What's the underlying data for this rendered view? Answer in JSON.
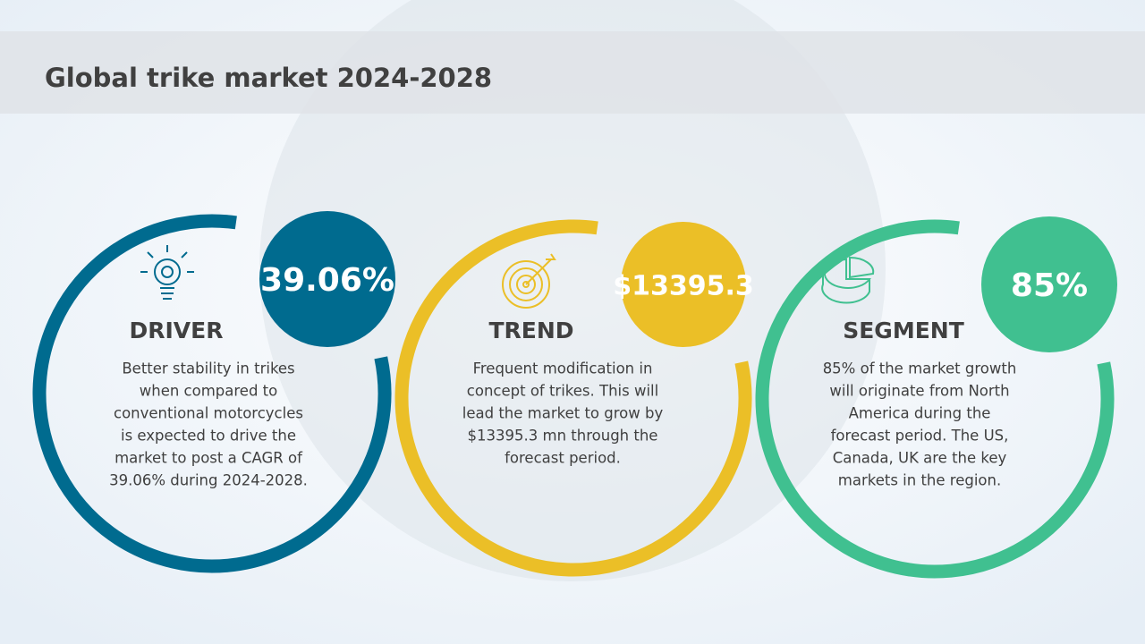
{
  "header": {
    "title": "Global trike market 2024-2028"
  },
  "cards": [
    {
      "badge": "39.06%",
      "heading": "DRIVER",
      "color": "#006b8f",
      "body": [
        "Better stability in trikes",
        "when compared to",
        "conventional motorcycles",
        "is expected to drive the",
        "market to post a CAGR of",
        "39.06% during 2024-2028."
      ]
    },
    {
      "badge": "$13395.3",
      "heading": "TREND",
      "color": "#ebbf27",
      "body": [
        "Frequent modification in",
        "concept of trikes. This will",
        "lead the market to grow by",
        "$13395.3 mn through the",
        "forecast period."
      ]
    },
    {
      "badge": "85%",
      "heading": "SEGMENT",
      "color": "#40c090",
      "body": [
        "85% of the market growth",
        "will originate from North",
        "America during the",
        "forecast period. The US,",
        "Canada, UK are the key",
        "markets in the region."
      ]
    }
  ]
}
